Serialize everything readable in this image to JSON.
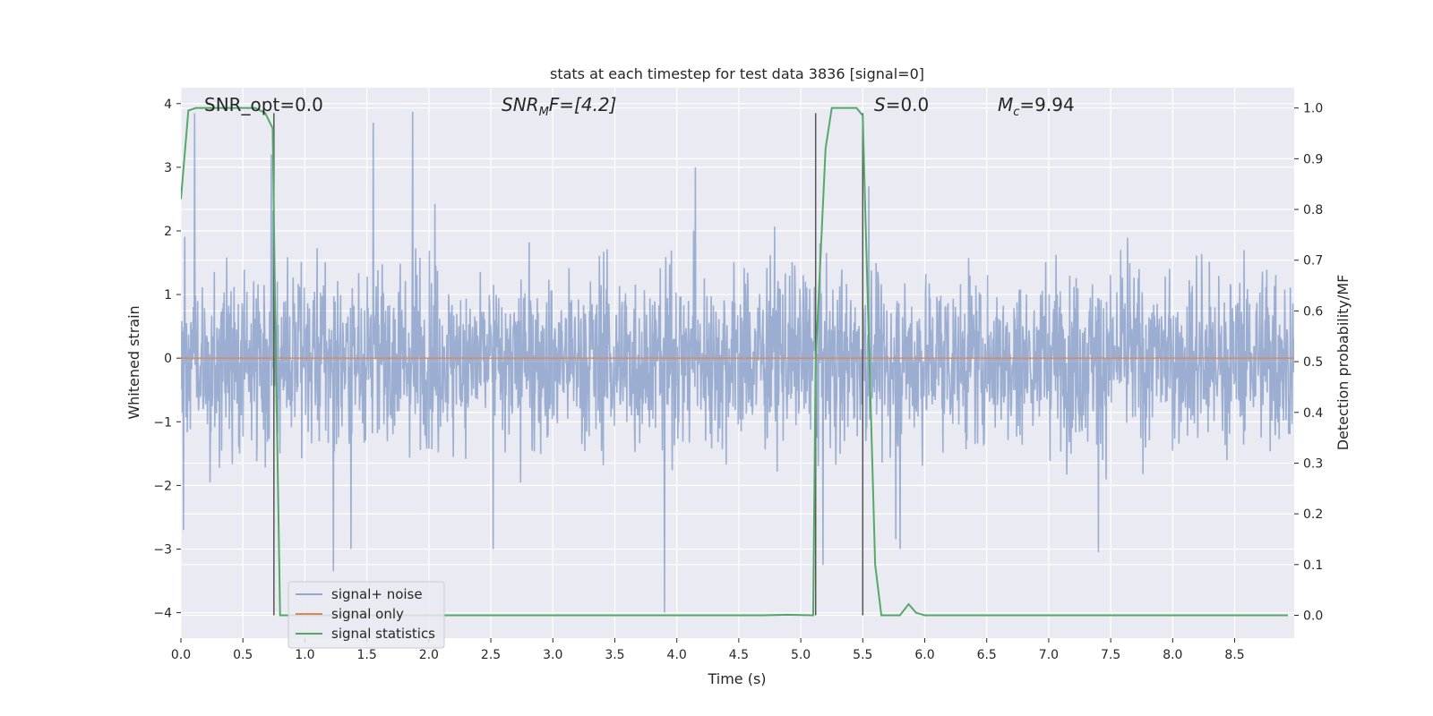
{
  "chart_data": {
    "type": "line",
    "title": "stats at each timestep for test data 3836 [signal=0]",
    "xlabel": "Time (s)",
    "ylabel": "Whitened strain",
    "ylabel_right": "Detection probability/MF",
    "xlim": [
      0.0,
      8.98
    ],
    "ylim": [
      -4.4,
      4.25
    ],
    "ylim_right": [
      -0.045,
      1.04
    ],
    "x_ticks": [
      0.0,
      0.5,
      1.0,
      1.5,
      2.0,
      2.5,
      3.0,
      3.5,
      4.0,
      4.5,
      5.0,
      5.5,
      6.0,
      6.5,
      7.0,
      7.5,
      8.0,
      8.5
    ],
    "x_tick_labels": [
      "0.0",
      "0.5",
      "1.0",
      "1.5",
      "2.0",
      "2.5",
      "3.0",
      "3.5",
      "4.0",
      "4.5",
      "5.0",
      "5.5",
      "6.0",
      "6.5",
      "7.0",
      "7.5",
      "8.0",
      "8.5"
    ],
    "y_ticks": [
      -4,
      -3,
      -2,
      -1,
      0,
      1,
      2,
      3,
      4
    ],
    "y_tick_labels": [
      "−4",
      "−3",
      "−2",
      "−1",
      "0",
      "1",
      "2",
      "3",
      "4"
    ],
    "y_right_ticks": [
      0.0,
      0.1,
      0.2,
      0.3,
      0.4,
      0.5,
      0.6,
      0.7,
      0.8,
      0.9,
      1.0
    ],
    "y_right_tick_labels": [
      "0.0",
      "0.1",
      "0.2",
      "0.3",
      "0.4",
      "0.5",
      "0.6",
      "0.7",
      "0.8",
      "0.9",
      "1.0"
    ],
    "grid": true,
    "legend_position": "bottom-left",
    "series": [
      {
        "name": "signal+ noise",
        "color": "#4c72b0",
        "axis": "left",
        "style": "dense noise, amplitude mostly within ±2, peaks up to ~3.9",
        "peaks": [
          {
            "x": 0.11,
            "y": 3.85
          },
          {
            "x": 0.73,
            "y": 3.2
          },
          {
            "x": 1.55,
            "y": 3.7
          },
          {
            "x": 1.87,
            "y": 3.87
          },
          {
            "x": 4.15,
            "y": 3.0
          },
          {
            "x": 5.55,
            "y": 2.7
          },
          {
            "x": 0.02,
            "y": -2.7
          },
          {
            "x": 1.23,
            "y": -3.35
          },
          {
            "x": 1.37,
            "y": -3.0
          },
          {
            "x": 2.52,
            "y": -3.0
          },
          {
            "x": 3.9,
            "y": -4.0
          },
          {
            "x": 5.18,
            "y": -3.25
          },
          {
            "x": 5.8,
            "y": -3.0
          },
          {
            "x": 7.4,
            "y": -3.05
          }
        ]
      },
      {
        "name": "signal only",
        "color": "#dd8452",
        "axis": "left",
        "x": [
          0.0,
          8.98
        ],
        "y": [
          0.0,
          0.0
        ]
      },
      {
        "name": "signal statistics",
        "color": "#55a868",
        "axis": "right",
        "x": [
          0.0,
          0.06,
          0.12,
          0.6,
          0.68,
          0.74,
          0.76,
          0.8,
          1.5,
          4.7,
          4.9,
          5.1,
          5.12,
          5.2,
          5.25,
          5.45,
          5.5,
          5.52,
          5.6,
          5.65,
          5.8,
          5.87,
          5.93,
          6.0,
          6.3,
          8.93
        ],
        "y": [
          0.82,
          0.995,
          1.0,
          1.0,
          0.99,
          0.96,
          0.6,
          0.0,
          0.0,
          0.0,
          0.001,
          0.0,
          0.5,
          0.92,
          1.0,
          1.0,
          0.985,
          0.8,
          0.1,
          0.0,
          0.0,
          0.022,
          0.005,
          0.0,
          0.0,
          0.0
        ]
      }
    ],
    "vlines": [
      {
        "x": 0.75,
        "color": "#555555"
      },
      {
        "x": 5.12,
        "color": "#555555"
      },
      {
        "x": 5.5,
        "color": "#555555"
      }
    ],
    "annotations": [
      {
        "id": "snr-opt",
        "text": "SNR_opt=0.0",
        "x": 0.2,
        "y": 4.0
      },
      {
        "id": "snr-mf",
        "text": "SNRMF=[4.2]",
        "x": 2.6,
        "y": 4.0
      },
      {
        "id": "s-value",
        "text": "S=0.0",
        "x": 5.62,
        "y": 4.0
      },
      {
        "id": "mc-value",
        "text": "Mc=9.94",
        "x": 6.61,
        "y": 4.0
      }
    ]
  },
  "annot": {
    "snr_opt": "SNR_opt=0.0",
    "snr_mf_prefix": "SNR",
    "snr_mf_sub": "M",
    "snr_mf_suffix": "F=[4.2]",
    "s_label": "S",
    "s_value": "=0.0",
    "mc_label": "M",
    "mc_sub": "c",
    "mc_value": "=9.94"
  }
}
